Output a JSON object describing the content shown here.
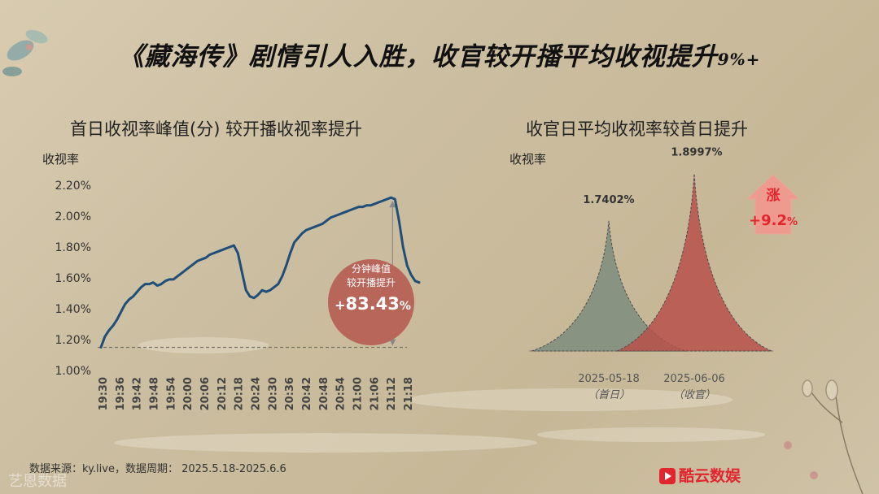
{
  "title_main": "《藏海传》剧情引人入胜，收官较开播平均收视提升",
  "title_pct": "9%+",
  "charts": [
    {
      "subtitle": "首日收视率峰值(分) 较开播收视率提升",
      "ylabel": "收视率",
      "badge": {
        "line1": "分钟峰值",
        "line2": "较开播提升",
        "sign": "+",
        "number": "83.43",
        "unit": "%"
      }
    },
    {
      "subtitle": "收官日平均收视率较首日提升",
      "ylabel": "收视率",
      "rise": {
        "char": "涨",
        "sign": "+",
        "number": "9.2",
        "unit": "%"
      }
    }
  ],
  "footer": {
    "source": "数据来源：ky.live，数据周期：  2025.5.18-2025.6.6",
    "logo": "艺恩数据",
    "brand": "酷云数娱"
  },
  "colors": {
    "line": "#1f4e79",
    "badge": "#b8655a",
    "gray_peak": "#7e8c7e",
    "red_peak": "#b7504a",
    "rise_arrow": "#ef9a8e",
    "brand": "#e2262f"
  },
  "chart_data": [
    {
      "type": "line",
      "ylim": [
        1.0,
        2.2
      ],
      "y_ticks": [
        "1.00%",
        "1.20%",
        "1.40%",
        "1.60%",
        "1.80%",
        "2.00%",
        "2.20%"
      ],
      "x_ticks": [
        "19:30",
        "19:36",
        "19:42",
        "19:48",
        "19:54",
        "20:00",
        "20:06",
        "20:12",
        "20:18",
        "20:24",
        "20:30",
        "20:36",
        "20:42",
        "20:48",
        "20:54",
        "21:00",
        "21:06",
        "21:12",
        "21:18"
      ],
      "reference_line": 1.15,
      "series": [
        {
          "values": [
            1.15,
            1.22,
            1.26,
            1.29,
            1.33,
            1.38,
            1.43,
            1.46,
            1.48,
            1.51,
            1.54,
            1.56,
            1.56,
            1.57,
            1.55,
            1.56,
            1.58,
            1.59,
            1.59,
            1.61,
            1.63,
            1.65,
            1.67,
            1.69,
            1.71,
            1.72,
            1.73,
            1.75,
            1.76,
            1.77,
            1.78,
            1.79,
            1.8,
            1.81,
            1.76,
            1.64,
            1.52,
            1.48,
            1.47,
            1.49,
            1.52,
            1.51,
            1.52,
            1.54,
            1.56,
            1.61,
            1.68,
            1.76,
            1.83,
            1.86,
            1.89,
            1.91,
            1.92,
            1.93,
            1.94,
            1.95,
            1.97,
            1.99,
            2.0,
            2.01,
            2.02,
            2.03,
            2.04,
            2.05,
            2.06,
            2.06,
            2.07,
            2.07,
            2.08,
            2.09,
            2.1,
            2.11,
            2.12,
            2.11,
            1.97,
            1.8,
            1.68,
            1.62,
            1.58,
            1.57
          ]
        }
      ]
    },
    {
      "type": "area",
      "categories": [
        "2025-05-18",
        "2025-06-06"
      ],
      "category_notes": [
        "（首日）",
        "（收官）"
      ],
      "values": [
        1.7402,
        1.8997
      ],
      "value_labels": [
        "1.7402%",
        "1.8997%"
      ]
    }
  ]
}
